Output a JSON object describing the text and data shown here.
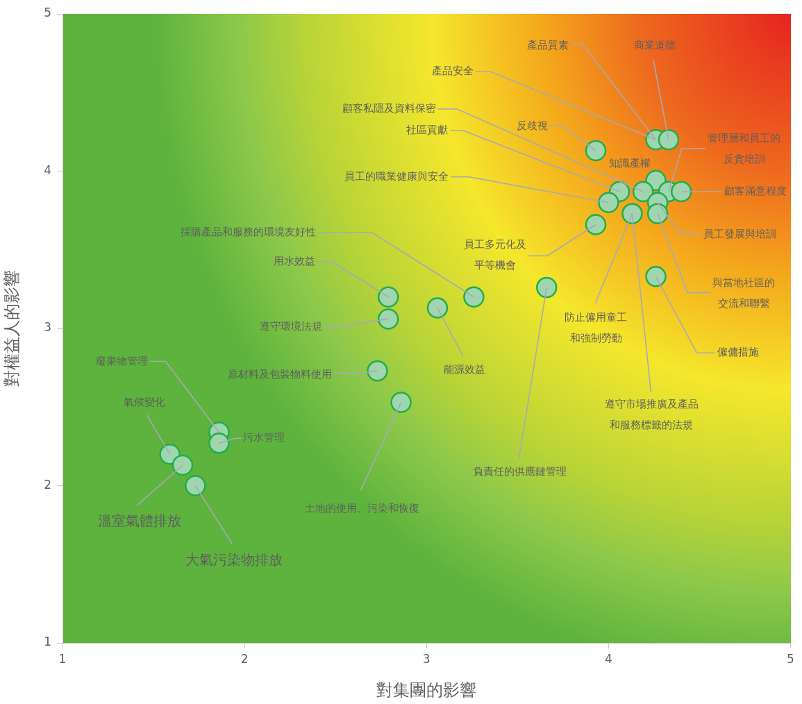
{
  "chart_data": {
    "type": "scatter",
    "xlabel": "對集團的影響",
    "ylabel": "對權益人的影響",
    "xlim": [
      1,
      5
    ],
    "ylim": [
      1,
      5
    ],
    "xticks": [
      1,
      2,
      3,
      4,
      5
    ],
    "yticks": [
      1,
      2,
      3,
      4,
      5
    ],
    "marker": "circle",
    "series": [
      {
        "color": "#9fd6b0",
        "x": [
          4.26,
          4.33,
          3.93,
          4.26,
          4.19,
          4.06,
          4.0,
          4.33,
          4.4,
          4.27,
          4.27,
          4.13,
          3.93,
          3.66,
          4.26,
          3.26,
          2.79,
          2.79,
          3.06,
          2.73,
          2.86,
          1.86,
          1.86,
          1.59,
          1.66,
          1.73
        ],
        "values": [
          4.2,
          4.2,
          4.13,
          3.94,
          3.87,
          3.87,
          3.8,
          3.87,
          3.87,
          3.8,
          3.73,
          3.73,
          3.66,
          3.26,
          3.33,
          3.2,
          3.2,
          3.06,
          3.13,
          2.73,
          2.53,
          2.34,
          2.27,
          2.2,
          2.13,
          2.0
        ]
      }
    ],
    "annotations": [
      {
        "text": "產品質素",
        "x": 4.26,
        "y": 4.2
      },
      {
        "text": "產品安全",
        "x": 4.26,
        "y": 4.2
      },
      {
        "text": "商業道德",
        "x": 4.33,
        "y": 4.2
      },
      {
        "text": "反歧視",
        "x": 3.93,
        "y": 4.13
      },
      {
        "text": "知識產權",
        "x": 4.26,
        "y": 3.94
      },
      {
        "text": "顧客私隱及資料保密",
        "x": 4.19,
        "y": 3.87
      },
      {
        "text": "社區貢獻",
        "x": 4.06,
        "y": 3.87
      },
      {
        "text": "員工的職業健康與安全",
        "x": 4.0,
        "y": 3.8
      },
      {
        "text": "管理層和員工的反貪培訓",
        "x": 4.33,
        "y": 3.87
      },
      {
        "text": "顧客滿意程度",
        "x": 4.4,
        "y": 3.87
      },
      {
        "text": "員工發展與培訓",
        "x": 4.27,
        "y": 3.8
      },
      {
        "text": "與當地社區的交流和聯繫",
        "x": 4.27,
        "y": 3.73
      },
      {
        "text": "防止僱用童工和強制勞動",
        "x": 4.13,
        "y": 3.73
      },
      {
        "text": "遵守市場推廣及產品和服務標籤的法規",
        "x": 4.13,
        "y": 3.73
      },
      {
        "text": "員工多元化及平等機會",
        "x": 3.93,
        "y": 3.66
      },
      {
        "text": "負責任的供應鏈管理",
        "x": 3.66,
        "y": 3.26
      },
      {
        "text": "僱傭措施",
        "x": 4.26,
        "y": 3.33
      },
      {
        "text": "採購產品和服務的環境友好性",
        "x": 3.26,
        "y": 3.2
      },
      {
        "text": "用水效益",
        "x": 2.79,
        "y": 3.2
      },
      {
        "text": "遵守環境法規",
        "x": 2.79,
        "y": 3.06
      },
      {
        "text": "能源效益",
        "x": 3.06,
        "y": 3.13
      },
      {
        "text": "原材料及包裝物料使用",
        "x": 2.73,
        "y": 2.73
      },
      {
        "text": "土地的使用、污染和恢復",
        "x": 2.86,
        "y": 2.53
      },
      {
        "text": "廢棄物管理",
        "x": 1.86,
        "y": 2.34
      },
      {
        "text": "污水管理",
        "x": 1.86,
        "y": 2.27
      },
      {
        "text": "氣候變化",
        "x": 1.59,
        "y": 2.2
      },
      {
        "text": "溫室氣體排放",
        "x": 1.66,
        "y": 2.13
      },
      {
        "text": "大氣污染物排放",
        "x": 1.73,
        "y": 2.0
      }
    ]
  }
}
